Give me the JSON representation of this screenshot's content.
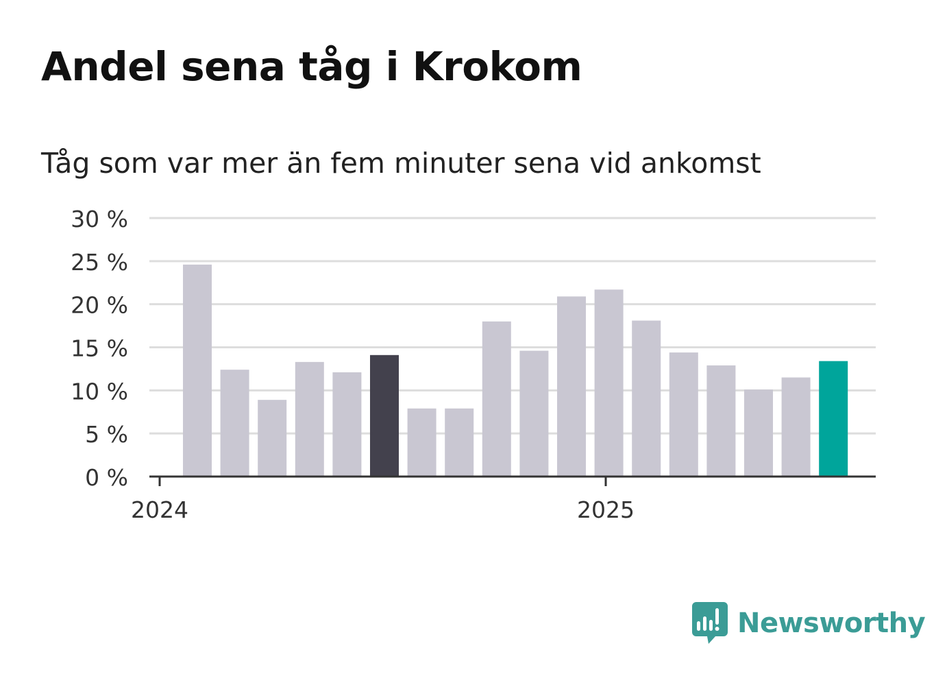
{
  "title": "Andel sena tåg i Krokom",
  "subtitle": "Tåg som var mer än fem minuter sena vid ankomst",
  "logo": {
    "text": "Newsworthy",
    "color": "#3b9c96",
    "icon": "newsworthy-bar-chart-speech-icon"
  },
  "colors": {
    "default_bar": "#c9c7d2",
    "highlight_bar": "#43414d",
    "latest_bar": "#00a59b",
    "gridline": "#dddddd",
    "axis": "#333333"
  },
  "chart_data": {
    "type": "bar",
    "title": "Andel sena tåg i Krokom",
    "subtitle": "Tåg som var mer än fem minuter sena vid ankomst",
    "xlabel": "",
    "ylabel": "",
    "ylim": [
      0,
      30
    ],
    "yticks": [
      0,
      5,
      10,
      15,
      20,
      25,
      30
    ],
    "ytick_labels": [
      "0 %",
      "5 %",
      "10 %",
      "15 %",
      "20 %",
      "25 %",
      "30 %"
    ],
    "xtick_labels": [
      "2024",
      "2025"
    ],
    "grid": true,
    "legend": "none",
    "series": [
      {
        "values": [
          24.6,
          12.4,
          8.9,
          13.3,
          12.1,
          14.1,
          7.9,
          7.9,
          18.0,
          14.6,
          20.9,
          21.7,
          18.1,
          14.4,
          12.9,
          10.1,
          11.5,
          13.4
        ],
        "highlights": {
          "5": "highlight_bar",
          "17": "latest_bar"
        }
      }
    ]
  }
}
